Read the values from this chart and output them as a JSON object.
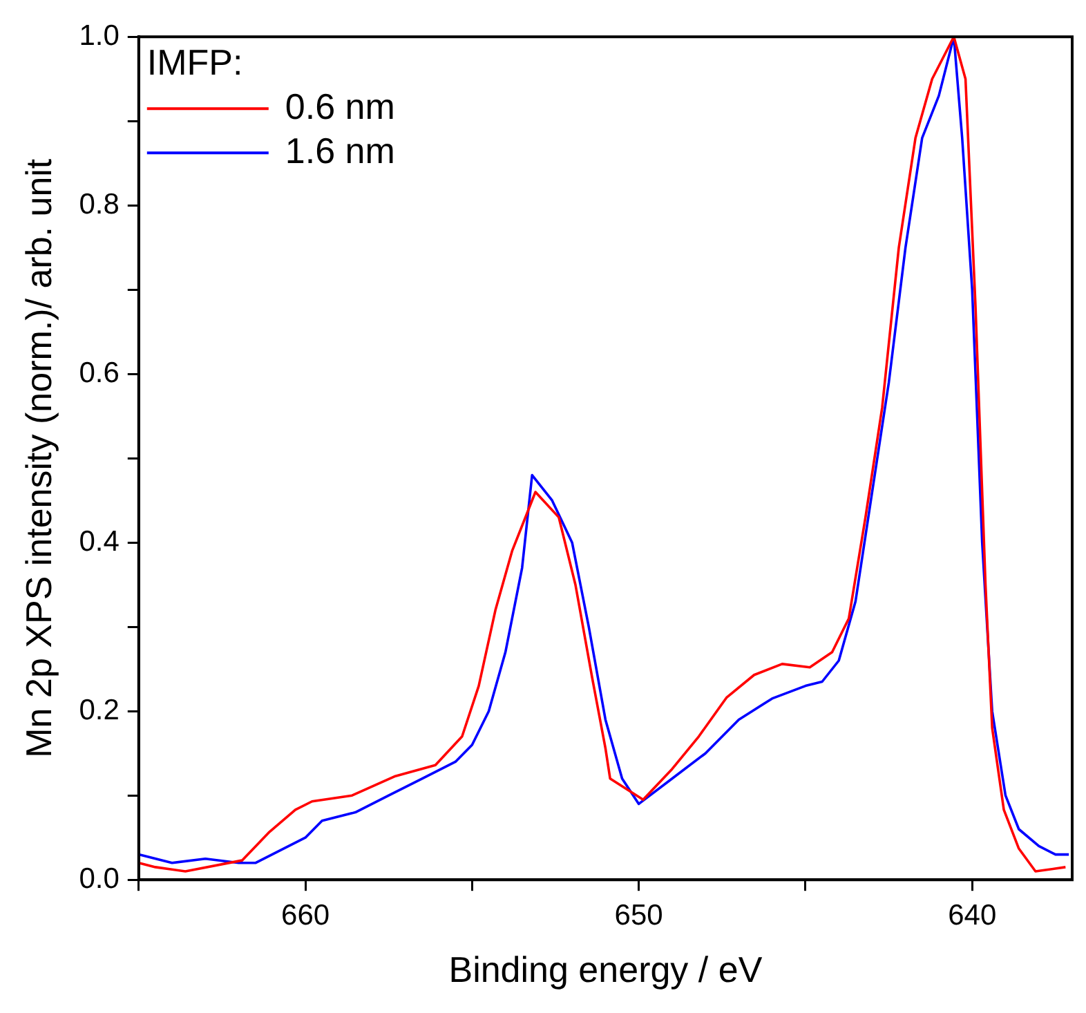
{
  "chart_data": {
    "type": "line",
    "xlabel": "Binding energy / eV",
    "ylabel": "Mn 2p XPS intensity (norm.)/ arb. unit",
    "legend_title": "IMFP:",
    "legend": "top left",
    "xlim": [
      665,
      637
    ],
    "ylim": [
      0,
      1
    ],
    "xticks": [
      {
        "value": 665,
        "label": null
      },
      660,
      {
        "value": 655,
        "label": null
      },
      650,
      {
        "value": 645,
        "label": null
      },
      640
    ],
    "yticks": [
      {
        "value": 0,
        "label": "0.0"
      },
      {
        "value": 0.1,
        "label": null
      },
      0.2,
      {
        "value": 0.3,
        "label": null
      },
      0.4,
      {
        "value": 0.5,
        "label": null
      },
      0.6,
      {
        "value": 0.7,
        "label": null
      },
      0.8,
      {
        "value": 0.9,
        "label": null
      },
      {
        "value": 1,
        "label": "1.0"
      }
    ],
    "series": [
      {
        "name": "0.6 nm",
        "color": "#ff0000",
        "x": [
          665,
          664.5,
          663.6,
          661.9,
          661.1,
          660.3,
          659.8,
          658.6,
          657.3,
          656.1,
          655.3,
          654.8,
          654.3,
          653.8,
          653.1,
          652.4,
          651.9,
          651.4,
          651,
          650.86,
          649.87,
          649.03,
          648.2,
          647.37,
          646.54,
          645.7,
          644.87,
          644.2,
          643.7,
          643.2,
          642.7,
          642.2,
          641.7,
          641.2,
          640.55,
          640.2,
          639.9,
          639.6,
          639.4,
          639.05,
          638.6,
          638.1,
          637.2
        ],
        "values": [
          0.02,
          0.015,
          0.01,
          0.023,
          0.056,
          0.083,
          0.093,
          0.1,
          0.123,
          0.136,
          0.17,
          0.23,
          0.32,
          0.39,
          0.46,
          0.43,
          0.35,
          0.24,
          0.156,
          0.12,
          0.095,
          0.13,
          0.17,
          0.216,
          0.243,
          0.256,
          0.252,
          0.27,
          0.31,
          0.43,
          0.56,
          0.75,
          0.88,
          0.95,
          1.0,
          0.95,
          0.68,
          0.35,
          0.18,
          0.083,
          0.037,
          0.01,
          0.015
        ]
      },
      {
        "name": "1.6 nm",
        "color": "#0000ff",
        "x": [
          665,
          664,
          663,
          662,
          661.5,
          661,
          660,
          659.5,
          658.5,
          657.5,
          656.5,
          655.5,
          655,
          654.5,
          654,
          653.5,
          653.2,
          652.6,
          652,
          651.5,
          651,
          650.5,
          650,
          649,
          648,
          647,
          646,
          645,
          644.5,
          644,
          643.5,
          643,
          642.5,
          642,
          641.5,
          641,
          640.55,
          640.3,
          640,
          639.7,
          639.4,
          639,
          638.6,
          638,
          637.5,
          637.1
        ],
        "values": [
          0.03,
          0.02,
          0.025,
          0.02,
          0.02,
          0.03,
          0.05,
          0.07,
          0.08,
          0.1,
          0.12,
          0.14,
          0.16,
          0.2,
          0.27,
          0.37,
          0.48,
          0.45,
          0.4,
          0.3,
          0.19,
          0.12,
          0.09,
          0.12,
          0.15,
          0.19,
          0.215,
          0.23,
          0.235,
          0.26,
          0.33,
          0.46,
          0.59,
          0.75,
          0.88,
          0.93,
          1.0,
          0.88,
          0.7,
          0.4,
          0.2,
          0.1,
          0.06,
          0.04,
          0.03,
          0.03
        ]
      }
    ]
  }
}
